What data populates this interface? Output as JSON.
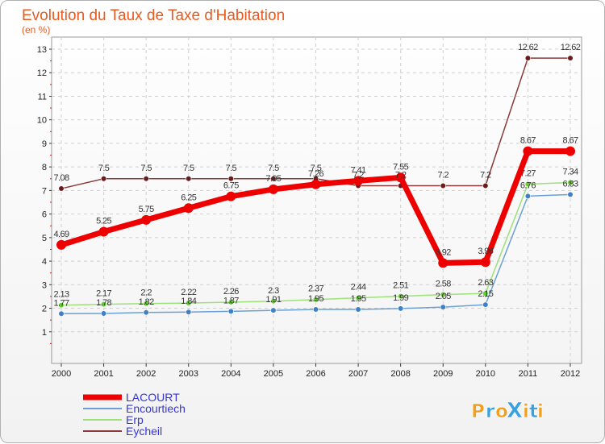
{
  "chart_data": {
    "type": "line",
    "title": "Evolution du Taux de Taxe d'Habitation",
    "subtitle": "(en %)",
    "xlabel": "",
    "ylabel": "",
    "x": [
      "2000",
      "2001",
      "2002",
      "2003",
      "2004",
      "2005",
      "2006",
      "2007",
      "2008",
      "2009",
      "2010",
      "2011",
      "2012"
    ],
    "ylim": [
      0,
      13
    ],
    "yticks": [
      "1",
      "2",
      "3",
      "4",
      "5",
      "6",
      "7",
      "8",
      "9",
      "10",
      "11",
      "12",
      "13"
    ],
    "grid": true,
    "series": [
      {
        "name": "LACOURT",
        "color": "#ee0000",
        "markerColor": "#ee0000",
        "values": [
          4.69,
          5.25,
          5.75,
          6.25,
          6.75,
          7.05,
          7.26,
          7.41,
          7.55,
          3.92,
          3.96,
          8.67,
          8.67
        ],
        "labels": [
          "4.69",
          "5.25",
          "5.75",
          "6.25",
          "6.75",
          "7.05",
          "7.26",
          "7.41",
          "7.55",
          "3.92",
          "3.96",
          "8.67",
          "8.67"
        ]
      },
      {
        "name": "Encourtiech",
        "color": "#6aa0d4",
        "markerColor": "#3f80c6",
        "values": [
          1.77,
          1.78,
          1.82,
          1.84,
          1.87,
          1.91,
          1.95,
          1.95,
          1.99,
          2.05,
          2.15,
          6.76,
          6.83
        ],
        "labels": [
          "1.77",
          "1.78",
          "1.82",
          "1.84",
          "1.87",
          "1.91",
          "1.95",
          "1.95",
          "1.99",
          "2.05",
          "2.15",
          "6.76",
          "6.83"
        ]
      },
      {
        "name": "Erp",
        "color": "#9ee07a",
        "markerColor": "#66cc33",
        "values": [
          2.13,
          2.17,
          2.2,
          2.22,
          2.26,
          2.3,
          2.37,
          2.44,
          2.51,
          2.58,
          2.63,
          7.27,
          7.34
        ],
        "labels": [
          "2.13",
          "2.17",
          "2.2",
          "2.22",
          "2.26",
          "2.3",
          "2.37",
          "2.44",
          "2.51",
          "2.58",
          "2.63",
          "7.27",
          "7.34"
        ]
      },
      {
        "name": "Eycheil",
        "color": "#8a3a3a",
        "markerColor": "#6a1c1c",
        "values": [
          7.08,
          7.5,
          7.5,
          7.5,
          7.5,
          7.5,
          7.5,
          7.2,
          7.2,
          7.2,
          7.2,
          12.62,
          12.62
        ],
        "labels": [
          "7.08",
          "7.5",
          "7.5",
          "7.5",
          "7.5",
          "7.5",
          "7.5",
          "7.2",
          "7.2",
          "7.2",
          "7.2",
          "12.62",
          "12.62"
        ]
      }
    ],
    "legend_position": "bottom-left"
  },
  "logo": {
    "text": "ProXiti",
    "letters": [
      "P",
      "r",
      "o",
      "X",
      "i",
      "t",
      "i"
    ],
    "colors": [
      "#f0a020",
      "#3aa0e0",
      "#f0a020",
      "#3aa0e0",
      "#f0a020",
      "#3aa0e0",
      "#f0a020"
    ]
  }
}
